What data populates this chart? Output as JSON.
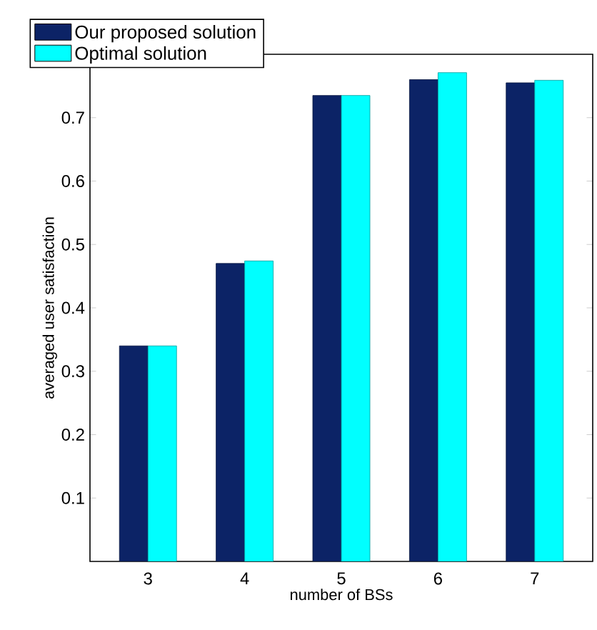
{
  "chart_data": {
    "type": "bar",
    "xlabel": "number of BSs",
    "ylabel": "averaged user satisfaction",
    "categories": [
      "3",
      "4",
      "5",
      "6",
      "7"
    ],
    "series": [
      {
        "name": "Our proposed solution",
        "color": "#0c2366",
        "values": [
          0.34,
          0.47,
          0.735,
          0.76,
          0.755
        ]
      },
      {
        "name": "Optimal solution",
        "color": "#00ffff",
        "values": [
          0.34,
          0.474,
          0.735,
          0.771,
          0.759
        ]
      }
    ],
    "ylim": [
      0,
      0.8
    ],
    "yticks": [
      0.1,
      0.2,
      0.3,
      0.4,
      0.5,
      0.6,
      0.7
    ],
    "legend": "top left",
    "grid": false
  }
}
